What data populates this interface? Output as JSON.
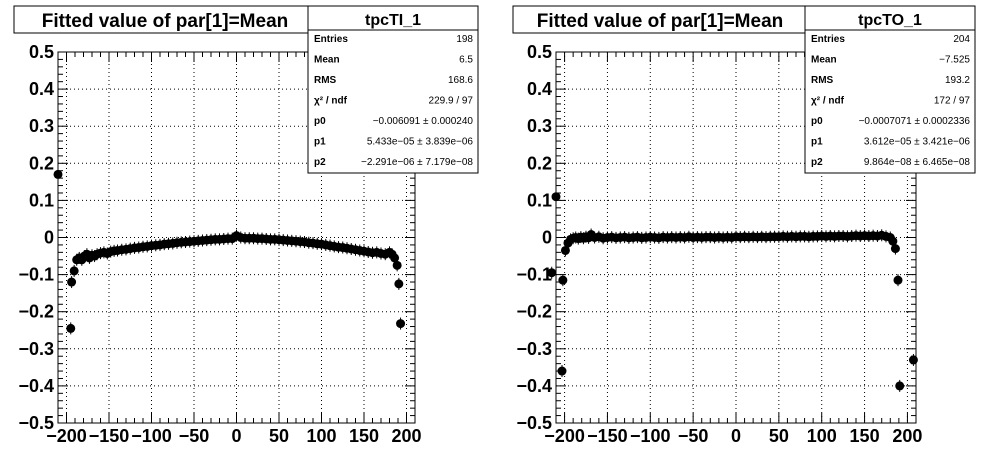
{
  "chart_data": [
    {
      "type": "scatter",
      "title": "Fitted value of par[1]=Mean",
      "xlabel": "",
      "ylabel": "",
      "xlim": [
        -210,
        210
      ],
      "ylim": [
        -0.5,
        0.5
      ],
      "xticks": [
        "−200",
        "−150",
        "−100",
        "−50",
        "0",
        "50",
        "100",
        "150",
        "200"
      ],
      "yticks": [
        "−0.5",
        "−0.4",
        "−0.3",
        "−0.2",
        "−0.1",
        "0",
        "0.1",
        "0.2",
        "0.3",
        "0.4",
        "0.5"
      ],
      "grid": true,
      "stats": {
        "name": "tpcTI_1",
        "rows": [
          {
            "label": "Entries",
            "value": "198"
          },
          {
            "label": "Mean",
            "value": "6.5"
          },
          {
            "label": "RMS",
            "value": "168.6"
          },
          {
            "label": "χ² / ndf",
            "value": "229.9 / 97"
          },
          {
            "label": "p0",
            "value": "−0.006091 ± 0.000240"
          },
          {
            "label": "p1",
            "value": "5.433e−05 ± 3.839e−06"
          },
          {
            "label": "p2",
            "value": "−2.291e−06 ± 7.179e−08"
          }
        ]
      },
      "points": [
        {
          "x": -210,
          "y": 0.17
        },
        {
          "x": -195,
          "y": -0.245
        },
        {
          "x": -194,
          "y": -0.12
        },
        {
          "x": -191,
          "y": -0.09
        },
        {
          "x": -188,
          "y": -0.06
        },
        {
          "x": -185,
          "y": -0.055
        },
        {
          "x": -182,
          "y": -0.06
        },
        {
          "x": -179,
          "y": -0.05
        },
        {
          "x": -176,
          "y": -0.045
        },
        {
          "x": -173,
          "y": -0.055
        },
        {
          "x": -170,
          "y": -0.048
        },
        {
          "x": -167,
          "y": -0.05
        },
        {
          "x": -164,
          "y": -0.045
        },
        {
          "x": -160,
          "y": -0.042
        },
        {
          "x": -156,
          "y": -0.04
        },
        {
          "x": -152,
          "y": -0.043
        },
        {
          "x": -148,
          "y": -0.038
        },
        {
          "x": -144,
          "y": -0.036
        },
        {
          "x": -140,
          "y": -0.035
        },
        {
          "x": -135,
          "y": -0.033
        },
        {
          "x": -130,
          "y": -0.032
        },
        {
          "x": -125,
          "y": -0.03
        },
        {
          "x": -120,
          "y": -0.028
        },
        {
          "x": -115,
          "y": -0.027
        },
        {
          "x": -110,
          "y": -0.025
        },
        {
          "x": -105,
          "y": -0.024
        },
        {
          "x": -100,
          "y": -0.022
        },
        {
          "x": -95,
          "y": -0.021
        },
        {
          "x": -90,
          "y": -0.02
        },
        {
          "x": -85,
          "y": -0.018
        },
        {
          "x": -80,
          "y": -0.017
        },
        {
          "x": -75,
          "y": -0.016
        },
        {
          "x": -70,
          "y": -0.014
        },
        {
          "x": -65,
          "y": -0.013
        },
        {
          "x": -60,
          "y": -0.012
        },
        {
          "x": -55,
          "y": -0.011
        },
        {
          "x": -50,
          "y": -0.01
        },
        {
          "x": -45,
          "y": -0.009
        },
        {
          "x": -40,
          "y": -0.008
        },
        {
          "x": -35,
          "y": -0.007
        },
        {
          "x": -30,
          "y": -0.006
        },
        {
          "x": -25,
          "y": -0.005
        },
        {
          "x": -20,
          "y": -0.005
        },
        {
          "x": -15,
          "y": -0.004
        },
        {
          "x": -10,
          "y": -0.003
        },
        {
          "x": -5,
          "y": -0.003
        },
        {
          "x": 0,
          "y": 0.005
        },
        {
          "x": 5,
          "y": 0.0
        },
        {
          "x": 10,
          "y": -0.002
        },
        {
          "x": 15,
          "y": -0.002
        },
        {
          "x": 20,
          "y": -0.002
        },
        {
          "x": 25,
          "y": -0.003
        },
        {
          "x": 30,
          "y": -0.003
        },
        {
          "x": 35,
          "y": -0.004
        },
        {
          "x": 40,
          "y": -0.005
        },
        {
          "x": 45,
          "y": -0.005
        },
        {
          "x": 50,
          "y": -0.006
        },
        {
          "x": 55,
          "y": -0.007
        },
        {
          "x": 60,
          "y": -0.008
        },
        {
          "x": 65,
          "y": -0.009
        },
        {
          "x": 70,
          "y": -0.01
        },
        {
          "x": 75,
          "y": -0.011
        },
        {
          "x": 80,
          "y": -0.012
        },
        {
          "x": 85,
          "y": -0.014
        },
        {
          "x": 90,
          "y": -0.015
        },
        {
          "x": 95,
          "y": -0.017
        },
        {
          "x": 100,
          "y": -0.018
        },
        {
          "x": 105,
          "y": -0.02
        },
        {
          "x": 110,
          "y": -0.022
        },
        {
          "x": 115,
          "y": -0.024
        },
        {
          "x": 120,
          "y": -0.026
        },
        {
          "x": 125,
          "y": -0.027
        },
        {
          "x": 130,
          "y": -0.029
        },
        {
          "x": 135,
          "y": -0.031
        },
        {
          "x": 140,
          "y": -0.033
        },
        {
          "x": 145,
          "y": -0.035
        },
        {
          "x": 150,
          "y": -0.037
        },
        {
          "x": 155,
          "y": -0.039
        },
        {
          "x": 160,
          "y": -0.041
        },
        {
          "x": 165,
          "y": -0.04
        },
        {
          "x": 170,
          "y": -0.043
        },
        {
          "x": 175,
          "y": -0.045
        },
        {
          "x": 180,
          "y": -0.04
        },
        {
          "x": 183,
          "y": -0.045
        },
        {
          "x": 186,
          "y": -0.055
        },
        {
          "x": 189,
          "y": -0.075
        },
        {
          "x": 191,
          "y": -0.125
        },
        {
          "x": 193,
          "y": -0.232
        }
      ]
    },
    {
      "type": "scatter",
      "title": "Fitted value of par[1]=Mean",
      "xlabel": "",
      "ylabel": "",
      "xlim": [
        -210,
        210
      ],
      "ylim": [
        -0.5,
        0.5
      ],
      "xticks": [
        "−200",
        "−150",
        "−100",
        "−50",
        "0",
        "50",
        "100",
        "150",
        "200"
      ],
      "yticks": [
        "−0.5",
        "−0.4",
        "−0.3",
        "−0.2",
        "−0.1",
        "0",
        "0.1",
        "0.2",
        "0.3",
        "0.4",
        "0.5"
      ],
      "grid": true,
      "stats": {
        "name": "tpcTO_1",
        "rows": [
          {
            "label": "Entries",
            "value": "204"
          },
          {
            "label": "Mean",
            "value": "−7.525"
          },
          {
            "label": "RMS",
            "value": "193.2"
          },
          {
            "label": "χ² / ndf",
            "value": "172 / 97"
          },
          {
            "label": "p0",
            "value": "−0.0007071 ± 0.0002336"
          },
          {
            "label": "p1",
            "value": "3.612e−05 ± 3.421e−06"
          },
          {
            "label": "p2",
            "value": "9.864e−08 ± 6.465e−08"
          }
        ]
      },
      "points": [
        {
          "x": -215,
          "y": -0.095
        },
        {
          "x": -210,
          "y": 0.11
        },
        {
          "x": -203,
          "y": -0.36
        },
        {
          "x": -202,
          "y": -0.115
        },
        {
          "x": -199,
          "y": -0.035
        },
        {
          "x": -196,
          "y": -0.015
        },
        {
          "x": -193,
          "y": -0.005
        },
        {
          "x": -190,
          "y": -0.002
        },
        {
          "x": -187,
          "y": 0.0
        },
        {
          "x": -184,
          "y": -0.003
        },
        {
          "x": -181,
          "y": 0.001
        },
        {
          "x": -178,
          "y": -0.002
        },
        {
          "x": -175,
          "y": 0.002
        },
        {
          "x": -172,
          "y": -0.001
        },
        {
          "x": -169,
          "y": 0.008
        },
        {
          "x": -165,
          "y": 0.0
        },
        {
          "x": -160,
          "y": 0.002
        },
        {
          "x": -155,
          "y": -0.002
        },
        {
          "x": -150,
          "y": 0.0
        },
        {
          "x": -145,
          "y": 0.001
        },
        {
          "x": -140,
          "y": -0.001
        },
        {
          "x": -135,
          "y": 0.0
        },
        {
          "x": -130,
          "y": 0.001
        },
        {
          "x": -125,
          "y": -0.001
        },
        {
          "x": -120,
          "y": 0.0
        },
        {
          "x": -115,
          "y": 0.001
        },
        {
          "x": -110,
          "y": -0.001
        },
        {
          "x": -105,
          "y": 0.0
        },
        {
          "x": -100,
          "y": 0.001
        },
        {
          "x": -95,
          "y": 0.0
        },
        {
          "x": -90,
          "y": -0.001
        },
        {
          "x": -85,
          "y": 0.001
        },
        {
          "x": -80,
          "y": 0.0
        },
        {
          "x": -75,
          "y": 0.001
        },
        {
          "x": -70,
          "y": 0.0
        },
        {
          "x": -65,
          "y": 0.001
        },
        {
          "x": -60,
          "y": 0.0
        },
        {
          "x": -55,
          "y": 0.002
        },
        {
          "x": -50,
          "y": 0.0
        },
        {
          "x": -45,
          "y": 0.001
        },
        {
          "x": -40,
          "y": 0.0
        },
        {
          "x": -35,
          "y": 0.001
        },
        {
          "x": -30,
          "y": 0.001
        },
        {
          "x": -25,
          "y": 0.0
        },
        {
          "x": -20,
          "y": 0.001
        },
        {
          "x": -15,
          "y": 0.0
        },
        {
          "x": -10,
          "y": 0.001
        },
        {
          "x": -5,
          "y": 0.0
        },
        {
          "x": 0,
          "y": 0.002
        },
        {
          "x": 5,
          "y": 0.001
        },
        {
          "x": 10,
          "y": 0.002
        },
        {
          "x": 15,
          "y": 0.001
        },
        {
          "x": 20,
          "y": 0.002
        },
        {
          "x": 25,
          "y": 0.001
        },
        {
          "x": 30,
          "y": 0.002
        },
        {
          "x": 35,
          "y": 0.001
        },
        {
          "x": 40,
          "y": 0.002
        },
        {
          "x": 45,
          "y": 0.002
        },
        {
          "x": 50,
          "y": 0.002
        },
        {
          "x": 55,
          "y": 0.003
        },
        {
          "x": 60,
          "y": 0.002
        },
        {
          "x": 65,
          "y": 0.003
        },
        {
          "x": 70,
          "y": 0.002
        },
        {
          "x": 75,
          "y": 0.003
        },
        {
          "x": 80,
          "y": 0.003
        },
        {
          "x": 85,
          "y": 0.002
        },
        {
          "x": 90,
          "y": 0.003
        },
        {
          "x": 95,
          "y": 0.003
        },
        {
          "x": 100,
          "y": 0.004
        },
        {
          "x": 105,
          "y": 0.003
        },
        {
          "x": 110,
          "y": 0.004
        },
        {
          "x": 115,
          "y": 0.003
        },
        {
          "x": 120,
          "y": 0.004
        },
        {
          "x": 125,
          "y": 0.004
        },
        {
          "x": 130,
          "y": 0.003
        },
        {
          "x": 135,
          "y": 0.004
        },
        {
          "x": 140,
          "y": 0.005
        },
        {
          "x": 145,
          "y": 0.004
        },
        {
          "x": 150,
          "y": 0.005
        },
        {
          "x": 155,
          "y": 0.004
        },
        {
          "x": 160,
          "y": 0.005
        },
        {
          "x": 165,
          "y": 0.004
        },
        {
          "x": 170,
          "y": 0.006
        },
        {
          "x": 175,
          "y": 0.003
        },
        {
          "x": 180,
          "y": 0.0
        },
        {
          "x": 183,
          "y": -0.01
        },
        {
          "x": 186,
          "y": -0.03
        },
        {
          "x": 189,
          "y": -0.115
        },
        {
          "x": 191,
          "y": -0.4
        },
        {
          "x": 207,
          "y": -0.33
        }
      ]
    }
  ]
}
